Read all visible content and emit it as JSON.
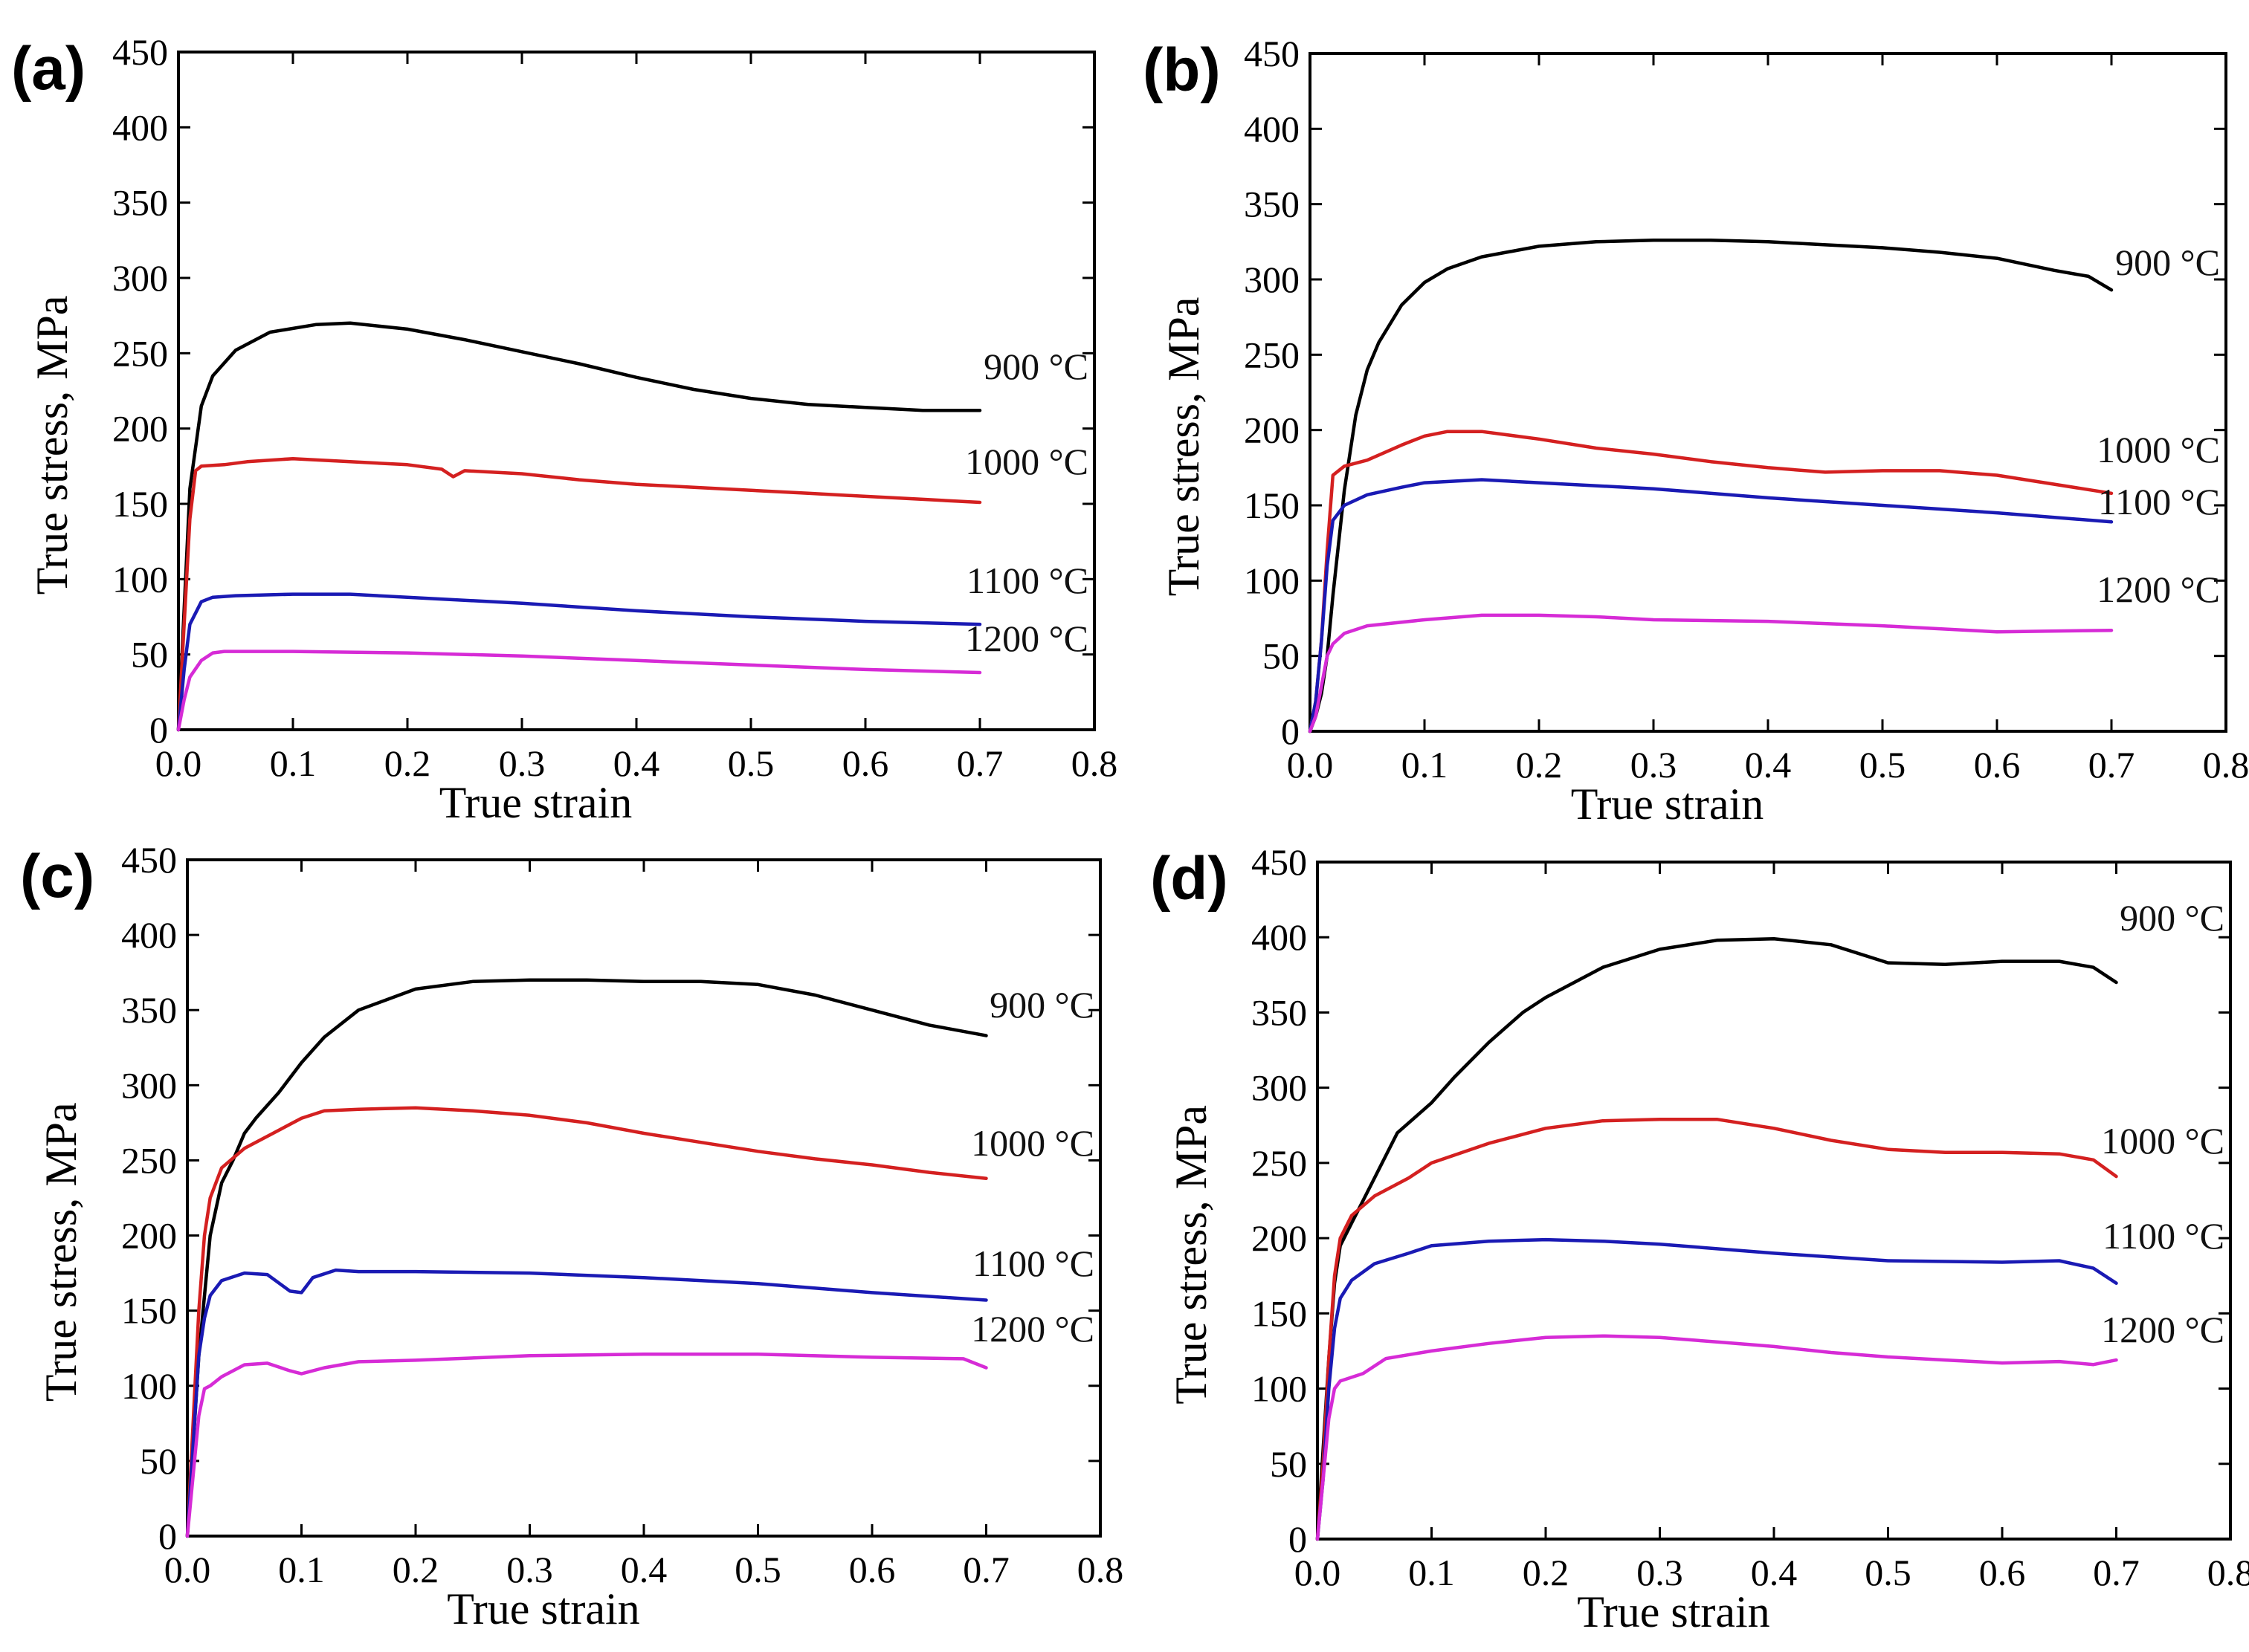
{
  "chart_data": [
    {
      "type": "line",
      "panel_label": "(a)",
      "xlabel": "True strain",
      "ylabel": "True stress, MPa",
      "xlim": [
        0,
        0.8
      ],
      "ylim": [
        0,
        450
      ],
      "xticks": [
        "0.0",
        "0.1",
        "0.2",
        "0.3",
        "0.4",
        "0.5",
        "0.6",
        "0.7",
        "0.8"
      ],
      "yticks": [
        "0",
        "50",
        "100",
        "150",
        "200",
        "250",
        "300",
        "350",
        "400",
        "450"
      ],
      "series": [
        {
          "name": "900 °C",
          "color": "#000000",
          "x": [
            0,
            0.005,
            0.01,
            0.02,
            0.03,
            0.05,
            0.08,
            0.12,
            0.15,
            0.2,
            0.25,
            0.3,
            0.35,
            0.4,
            0.45,
            0.5,
            0.55,
            0.6,
            0.65,
            0.7
          ],
          "y": [
            0,
            80,
            160,
            215,
            235,
            252,
            264,
            269,
            270,
            266,
            259,
            251,
            243,
            234,
            226,
            220,
            216,
            214,
            212,
            212
          ]
        },
        {
          "name": "1000 °C",
          "color": "#d42020",
          "x": [
            0,
            0.005,
            0.01,
            0.015,
            0.02,
            0.04,
            0.06,
            0.1,
            0.15,
            0.2,
            0.23,
            0.24,
            0.25,
            0.3,
            0.35,
            0.4,
            0.45,
            0.5,
            0.55,
            0.6,
            0.65,
            0.7
          ],
          "y": [
            0,
            70,
            140,
            172,
            175,
            176,
            178,
            180,
            178,
            176,
            173,
            168,
            172,
            170,
            166,
            163,
            161,
            159,
            157,
            155,
            153,
            151
          ]
        },
        {
          "name": "1100 °C",
          "color": "#1a1ab4",
          "x": [
            0,
            0.005,
            0.01,
            0.02,
            0.03,
            0.05,
            0.1,
            0.15,
            0.2,
            0.3,
            0.4,
            0.5,
            0.6,
            0.7
          ],
          "y": [
            0,
            40,
            70,
            85,
            88,
            89,
            90,
            90,
            88,
            84,
            79,
            75,
            72,
            70
          ]
        },
        {
          "name": "1200 °C",
          "color": "#d62bd6",
          "x": [
            0,
            0.005,
            0.01,
            0.02,
            0.03,
            0.04,
            0.1,
            0.2,
            0.3,
            0.4,
            0.5,
            0.6,
            0.7
          ],
          "y": [
            0,
            20,
            35,
            46,
            51,
            52,
            52,
            51,
            49,
            46,
            43,
            40,
            38
          ]
        }
      ]
    },
    {
      "type": "line",
      "panel_label": "(b)",
      "xlabel": "True strain",
      "ylabel": "True stress, MPa",
      "xlim": [
        0,
        0.8
      ],
      "ylim": [
        0,
        450
      ],
      "xticks": [
        "0.0",
        "0.1",
        "0.2",
        "0.3",
        "0.4",
        "0.5",
        "0.6",
        "0.7",
        "0.8"
      ],
      "yticks": [
        "0",
        "50",
        "100",
        "150",
        "200",
        "250",
        "300",
        "350",
        "400",
        "450"
      ],
      "series": [
        {
          "name": "900 °C",
          "color": "#000000",
          "x": [
            0,
            0.005,
            0.01,
            0.015,
            0.02,
            0.03,
            0.04,
            0.05,
            0.06,
            0.08,
            0.1,
            0.12,
            0.15,
            0.2,
            0.25,
            0.3,
            0.35,
            0.4,
            0.45,
            0.5,
            0.55,
            0.6,
            0.65,
            0.68,
            0.7
          ],
          "y": [
            0,
            10,
            25,
            50,
            90,
            160,
            210,
            240,
            258,
            283,
            298,
            307,
            315,
            322,
            325,
            326,
            326,
            325,
            323,
            321,
            318,
            314,
            306,
            302,
            293
          ]
        },
        {
          "name": "1000 °C",
          "color": "#d42020",
          "x": [
            0,
            0.005,
            0.01,
            0.015,
            0.02,
            0.03,
            0.05,
            0.08,
            0.1,
            0.12,
            0.15,
            0.2,
            0.25,
            0.3,
            0.35,
            0.4,
            0.45,
            0.5,
            0.55,
            0.6,
            0.65,
            0.7
          ],
          "y": [
            0,
            20,
            60,
            120,
            170,
            176,
            180,
            190,
            196,
            199,
            199,
            194,
            188,
            184,
            179,
            175,
            172,
            173,
            173,
            170,
            164,
            158
          ]
        },
        {
          "name": "1100 °C",
          "color": "#1a1ab4",
          "x": [
            0,
            0.005,
            0.01,
            0.015,
            0.02,
            0.03,
            0.05,
            0.08,
            0.1,
            0.15,
            0.2,
            0.3,
            0.4,
            0.5,
            0.6,
            0.7
          ],
          "y": [
            0,
            20,
            60,
            110,
            140,
            150,
            157,
            162,
            165,
            167,
            165,
            161,
            155,
            150,
            145,
            139
          ]
        },
        {
          "name": "1200 °C",
          "color": "#d62bd6",
          "x": [
            0,
            0.005,
            0.01,
            0.015,
            0.02,
            0.03,
            0.05,
            0.1,
            0.15,
            0.2,
            0.25,
            0.3,
            0.4,
            0.5,
            0.6,
            0.7
          ],
          "y": [
            0,
            10,
            30,
            50,
            58,
            65,
            70,
            74,
            77,
            77,
            76,
            74,
            73,
            70,
            66,
            67
          ]
        }
      ]
    },
    {
      "type": "line",
      "panel_label": "(c)",
      "xlabel": "True strain",
      "ylabel": "True stress, MPa",
      "xlim": [
        0,
        0.8
      ],
      "ylim": [
        0,
        450
      ],
      "xticks": [
        "0.0",
        "0.1",
        "0.2",
        "0.3",
        "0.4",
        "0.5",
        "0.6",
        "0.7",
        "0.8"
      ],
      "yticks": [
        "0",
        "50",
        "100",
        "150",
        "200",
        "250",
        "300",
        "350",
        "400",
        "450"
      ],
      "series": [
        {
          "name": "900 °C",
          "color": "#000000",
          "x": [
            0,
            0.01,
            0.02,
            0.03,
            0.04,
            0.05,
            0.06,
            0.08,
            0.1,
            0.12,
            0.15,
            0.2,
            0.25,
            0.3,
            0.35,
            0.4,
            0.45,
            0.5,
            0.55,
            0.6,
            0.65,
            0.7
          ],
          "y": [
            0,
            120,
            200,
            235,
            250,
            268,
            278,
            295,
            315,
            332,
            350,
            364,
            369,
            370,
            370,
            369,
            369,
            367,
            360,
            350,
            340,
            333
          ]
        },
        {
          "name": "1000 °C",
          "color": "#d42020",
          "x": [
            0,
            0.01,
            0.015,
            0.02,
            0.03,
            0.05,
            0.08,
            0.1,
            0.12,
            0.15,
            0.2,
            0.25,
            0.3,
            0.35,
            0.4,
            0.45,
            0.5,
            0.55,
            0.6,
            0.65,
            0.7
          ],
          "y": [
            0,
            150,
            200,
            225,
            245,
            258,
            270,
            278,
            283,
            284,
            285,
            283,
            280,
            275,
            268,
            262,
            256,
            251,
            247,
            242,
            238
          ]
        },
        {
          "name": "1100 °C",
          "color": "#1a1ab4",
          "x": [
            0,
            0.01,
            0.015,
            0.02,
            0.03,
            0.05,
            0.07,
            0.09,
            0.1,
            0.11,
            0.13,
            0.15,
            0.2,
            0.3,
            0.4,
            0.5,
            0.6,
            0.7
          ],
          "y": [
            0,
            120,
            145,
            160,
            170,
            175,
            174,
            163,
            162,
            172,
            177,
            176,
            176,
            175,
            172,
            168,
            162,
            157
          ]
        },
        {
          "name": "1200 °C",
          "color": "#d62bd6",
          "x": [
            0,
            0.01,
            0.015,
            0.02,
            0.03,
            0.05,
            0.07,
            0.09,
            0.1,
            0.12,
            0.15,
            0.2,
            0.3,
            0.4,
            0.5,
            0.6,
            0.68,
            0.7
          ],
          "y": [
            0,
            80,
            98,
            100,
            106,
            114,
            115,
            110,
            108,
            112,
            116,
            117,
            120,
            121,
            121,
            119,
            118,
            112
          ]
        }
      ]
    },
    {
      "type": "line",
      "panel_label": "(d)",
      "xlabel": "True strain",
      "ylabel": "True stress, MPa",
      "xlim": [
        0,
        0.8
      ],
      "ylim": [
        0,
        450
      ],
      "xticks": [
        "0.0",
        "0.1",
        "0.2",
        "0.3",
        "0.4",
        "0.5",
        "0.6",
        "0.7",
        "0.8"
      ],
      "yticks": [
        "0",
        "50",
        "100",
        "150",
        "200",
        "250",
        "300",
        "350",
        "400",
        "450"
      ],
      "series": [
        {
          "name": "900 °C",
          "color": "#000000",
          "x": [
            0,
            0.005,
            0.01,
            0.015,
            0.02,
            0.03,
            0.05,
            0.07,
            0.1,
            0.12,
            0.15,
            0.18,
            0.2,
            0.25,
            0.3,
            0.35,
            0.4,
            0.45,
            0.5,
            0.55,
            0.6,
            0.65,
            0.68,
            0.7
          ],
          "y": [
            0,
            60,
            120,
            170,
            195,
            210,
            240,
            270,
            290,
            307,
            330,
            350,
            360,
            380,
            392,
            398,
            399,
            395,
            383,
            382,
            384,
            384,
            380,
            370
          ]
        },
        {
          "name": "1000 °C",
          "color": "#d42020",
          "x": [
            0,
            0.005,
            0.01,
            0.015,
            0.02,
            0.03,
            0.05,
            0.08,
            0.1,
            0.15,
            0.2,
            0.25,
            0.3,
            0.35,
            0.4,
            0.45,
            0.5,
            0.55,
            0.6,
            0.65,
            0.68,
            0.7
          ],
          "y": [
            0,
            50,
            120,
            175,
            200,
            215,
            228,
            240,
            250,
            263,
            273,
            278,
            279,
            279,
            273,
            265,
            259,
            257,
            257,
            256,
            252,
            241
          ]
        },
        {
          "name": "1100 °C",
          "color": "#1a1ab4",
          "x": [
            0,
            0.005,
            0.01,
            0.015,
            0.02,
            0.03,
            0.05,
            0.08,
            0.1,
            0.15,
            0.2,
            0.25,
            0.3,
            0.4,
            0.5,
            0.6,
            0.65,
            0.68,
            0.7
          ],
          "y": [
            0,
            40,
            100,
            140,
            160,
            172,
            183,
            190,
            195,
            198,
            199,
            198,
            196,
            190,
            185,
            184,
            185,
            180,
            170
          ]
        },
        {
          "name": "1200 °C",
          "color": "#d62bd6",
          "x": [
            0,
            0.005,
            0.01,
            0.015,
            0.02,
            0.04,
            0.06,
            0.1,
            0.15,
            0.2,
            0.25,
            0.3,
            0.35,
            0.4,
            0.45,
            0.5,
            0.55,
            0.6,
            0.65,
            0.68,
            0.7
          ],
          "y": [
            0,
            40,
            80,
            100,
            105,
            110,
            120,
            125,
            130,
            134,
            135,
            134,
            131,
            128,
            124,
            121,
            119,
            117,
            118,
            116,
            119
          ]
        }
      ]
    }
  ]
}
